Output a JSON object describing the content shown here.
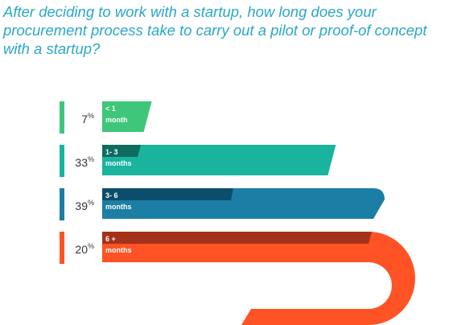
{
  "title": "After deciding to work with a startup, how long does your procurement process take to carry out a pilot or proof-of concept with a startup?",
  "chart_data": {
    "type": "bar",
    "title": "After deciding to work with a startup, how long does your procurement process take to carry out a pilot or proof-of concept with a startup?",
    "categories": [
      "< 1 month",
      "1- 3 months",
      "3- 6 months",
      "6 + months"
    ],
    "values": [
      7,
      33,
      39,
      20
    ],
    "value_labels": [
      "7",
      "33",
      "39",
      "20"
    ],
    "unit": "%",
    "bar_labels": [
      {
        "line1": "< 1",
        "line2": "month"
      },
      {
        "line1": "1- 3",
        "line2": "months"
      },
      {
        "line1": "3- 6",
        "line2": "months"
      },
      {
        "line1": "6 +",
        "line2": "months"
      }
    ],
    "colors": [
      "#3ec67a",
      "#19b39e",
      "#1b7ea5",
      "#ff5225"
    ],
    "shade_colors": [
      "#3ec67a",
      "#0e6b60",
      "#0c4d6b",
      "#a3321a"
    ],
    "xlabel": "",
    "ylabel": ""
  }
}
